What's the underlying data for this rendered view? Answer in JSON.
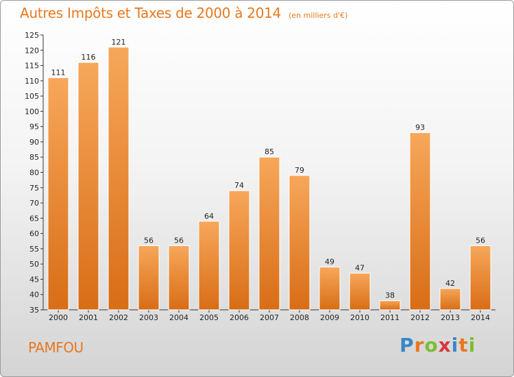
{
  "header": {
    "title": "Autres Impôts et Taxes de 2000 à 2014",
    "unit": "(en milliers d'€)"
  },
  "footer": {
    "commune": "PAMFOU",
    "logo_letters": [
      "P",
      "r",
      "o",
      "x",
      "i",
      "t",
      "i"
    ]
  },
  "colors": {
    "accent": "#e8781e",
    "bar_top": "#f7a75a",
    "bar_bottom": "#d86d16",
    "logo_blue": "#3a86c8",
    "logo_green": "#7bbf2e",
    "logo_orange": "#e8781e",
    "logo_red": "#d9363e"
  },
  "chart_data": {
    "type": "bar",
    "title": "Autres Impôts et Taxes de 2000 à 2014",
    "subtitle": "(en milliers d'€)",
    "xlabel": "",
    "ylabel": "",
    "categories": [
      "2000",
      "2001",
      "2002",
      "2003",
      "2004",
      "2005",
      "2006",
      "2007",
      "2008",
      "2009",
      "2010",
      "2011",
      "2012",
      "2013",
      "2014"
    ],
    "values": [
      111,
      116,
      121,
      56,
      56,
      64,
      74,
      85,
      79,
      49,
      47,
      38,
      93,
      42,
      56
    ],
    "ylim": [
      35,
      125
    ],
    "yticks": [
      35,
      40,
      45,
      50,
      55,
      60,
      65,
      70,
      75,
      80,
      85,
      90,
      95,
      100,
      105,
      110,
      115,
      120,
      125
    ],
    "grid": false,
    "legend": "none"
  }
}
